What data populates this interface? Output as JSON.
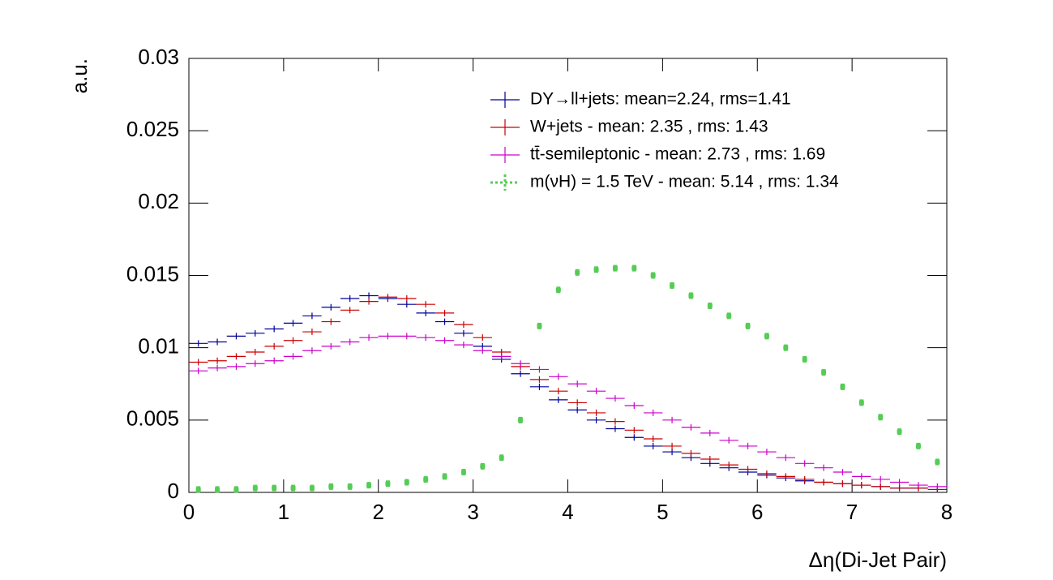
{
  "chart_data": {
    "type": "histogram",
    "xlabel": "Δη(Di-Jet Pair)",
    "ylabel": "a.u.",
    "xlim": [
      0,
      8
    ],
    "ylim": [
      0,
      0.03
    ],
    "xticks": [
      0,
      1,
      2,
      3,
      4,
      5,
      6,
      7,
      8
    ],
    "yticks": [
      0,
      0.005,
      0.01,
      0.015,
      0.02,
      0.025,
      0.03
    ],
    "legend": "upper right",
    "x": [
      0.1,
      0.3,
      0.5,
      0.7,
      0.9,
      1.1,
      1.3,
      1.5,
      1.7,
      1.9,
      2.1,
      2.3,
      2.5,
      2.7,
      2.9,
      3.1,
      3.3,
      3.5,
      3.7,
      3.9,
      4.1,
      4.3,
      4.5,
      4.7,
      4.9,
      5.1,
      5.3,
      5.5,
      5.7,
      5.9,
      6.1,
      6.3,
      6.5,
      6.7,
      6.9,
      7.1,
      7.3,
      7.5,
      7.7,
      7.9
    ],
    "series": [
      {
        "name": "DY→ll+jets: mean=2.24, rms=1.41",
        "color": "#000099",
        "values": [
          0.0103,
          0.0104,
          0.0108,
          0.011,
          0.0113,
          0.0117,
          0.0122,
          0.0128,
          0.0134,
          0.0136,
          0.0134,
          0.013,
          0.0124,
          0.0118,
          0.011,
          0.0101,
          0.0092,
          0.0082,
          0.0073,
          0.0064,
          0.0057,
          0.005,
          0.0044,
          0.0038,
          0.0032,
          0.0028,
          0.0024,
          0.002,
          0.0017,
          0.0014,
          0.0012,
          0.001,
          0.0008,
          0.0007,
          0.0006,
          0.0005,
          0.0004,
          0.0003,
          0.0003,
          0.0002
        ]
      },
      {
        "name": "W+jets - mean: 2.35 , rms: 1.43",
        "color": "#cc0000",
        "values": [
          0.009,
          0.0091,
          0.0094,
          0.0097,
          0.0101,
          0.0105,
          0.0111,
          0.0118,
          0.0126,
          0.0132,
          0.0135,
          0.0134,
          0.013,
          0.0124,
          0.0116,
          0.0107,
          0.0097,
          0.0087,
          0.0078,
          0.007,
          0.0062,
          0.0055,
          0.0049,
          0.0043,
          0.0037,
          0.0032,
          0.0027,
          0.0023,
          0.0019,
          0.0016,
          0.0013,
          0.0011,
          0.0009,
          0.0007,
          0.0006,
          0.0005,
          0.0004,
          0.0003,
          0.0003,
          0.0002
        ]
      },
      {
        "name": "tt̄-semileptonic - mean: 2.73 , rms: 1.69",
        "color": "#cc00cc",
        "values": [
          0.0084,
          0.0086,
          0.0087,
          0.0089,
          0.0091,
          0.0094,
          0.0098,
          0.0101,
          0.0104,
          0.0107,
          0.0108,
          0.0108,
          0.0107,
          0.0105,
          0.0102,
          0.0098,
          0.0094,
          0.0089,
          0.0085,
          0.008,
          0.0075,
          0.007,
          0.0065,
          0.006,
          0.0055,
          0.005,
          0.0045,
          0.0041,
          0.0036,
          0.0032,
          0.0028,
          0.0024,
          0.002,
          0.0017,
          0.0014,
          0.0011,
          0.0009,
          0.0007,
          0.0005,
          0.0004
        ]
      },
      {
        "name": "m(νH) = 1.5 TeV - mean: 5.14 , rms: 1.34",
        "color": "#55cc55",
        "values": [
          0.0002,
          0.0002,
          0.0002,
          0.0003,
          0.0003,
          0.0003,
          0.0003,
          0.0004,
          0.0004,
          0.0005,
          0.0006,
          0.0007,
          0.0009,
          0.0011,
          0.0014,
          0.0018,
          0.0024,
          0.005,
          0.0115,
          0.014,
          0.0152,
          0.0154,
          0.0155,
          0.0155,
          0.015,
          0.0143,
          0.0136,
          0.0129,
          0.0122,
          0.0115,
          0.0108,
          0.01,
          0.0092,
          0.0083,
          0.0073,
          0.0062,
          0.0052,
          0.0042,
          0.0032,
          0.0021
        ]
      }
    ]
  }
}
